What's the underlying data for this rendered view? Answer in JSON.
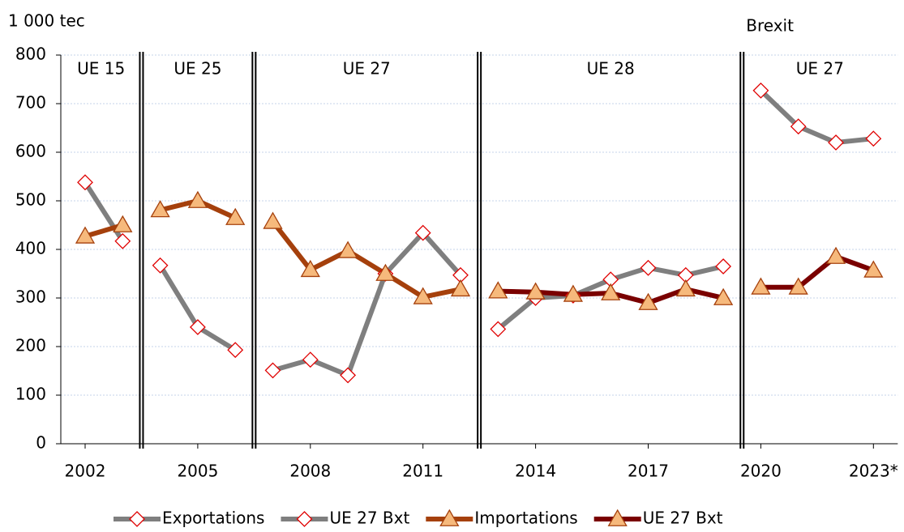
{
  "chart_data": {
    "type": "line",
    "y_label": "1 000 tec",
    "annotation": "Brexit",
    "categories": [
      "2002",
      null,
      null,
      "2005",
      null,
      null,
      "2008",
      null,
      null,
      "2011",
      null,
      null,
      "2014",
      null,
      null,
      "2017",
      null,
      null,
      "2020",
      null,
      null,
      "2023*"
    ],
    "periods": [
      {
        "label": "UE 15",
        "years": 2
      },
      {
        "label": "UE 25",
        "years": 3
      },
      {
        "label": "UE 27",
        "years": 6
      },
      {
        "label": "UE 28",
        "years": 7
      },
      {
        "label": "UE 27",
        "years": 4
      }
    ],
    "series": [
      {
        "name": "Exportations",
        "color": "#7f7f7f",
        "marker": "diamond",
        "marker_color": "#e00000",
        "values": [
          538,
          417,
          367,
          240,
          193,
          151,
          173,
          141,
          350,
          434,
          347,
          236,
          300,
          305,
          338,
          362,
          347,
          365,
          null,
          null,
          null,
          null
        ]
      },
      {
        "name": "UE 27 Bxt",
        "color": "#7f7f7f",
        "marker": "diamond",
        "marker_color": "#e00000",
        "values": [
          null,
          null,
          null,
          null,
          null,
          null,
          null,
          null,
          null,
          null,
          null,
          null,
          null,
          null,
          null,
          null,
          null,
          null,
          727,
          653,
          620,
          628
        ]
      },
      {
        "name": "Importations",
        "color": "#a5400c",
        "marker": "triangle",
        "marker_color": "#a5400c",
        "values": [
          427,
          450,
          481,
          500,
          465,
          457,
          358,
          397,
          350,
          302,
          318,
          null,
          null,
          null,
          null,
          null,
          null,
          null,
          null,
          null,
          null,
          null
        ]
      },
      {
        "name": "UE 27 Bxt",
        "color": "#7a0000",
        "marker": "triangle",
        "marker_color": "#a5400c",
        "values": [
          null,
          null,
          null,
          null,
          null,
          null,
          null,
          null,
          null,
          null,
          null,
          314,
          312,
          307,
          310,
          290,
          318,
          300,
          322,
          322,
          385,
          357
        ]
      }
    ],
    "ylim": [
      0,
      800
    ],
    "yticks": [
      0,
      100,
      200,
      300,
      400,
      500,
      600,
      700,
      800
    ],
    "grid": true
  }
}
